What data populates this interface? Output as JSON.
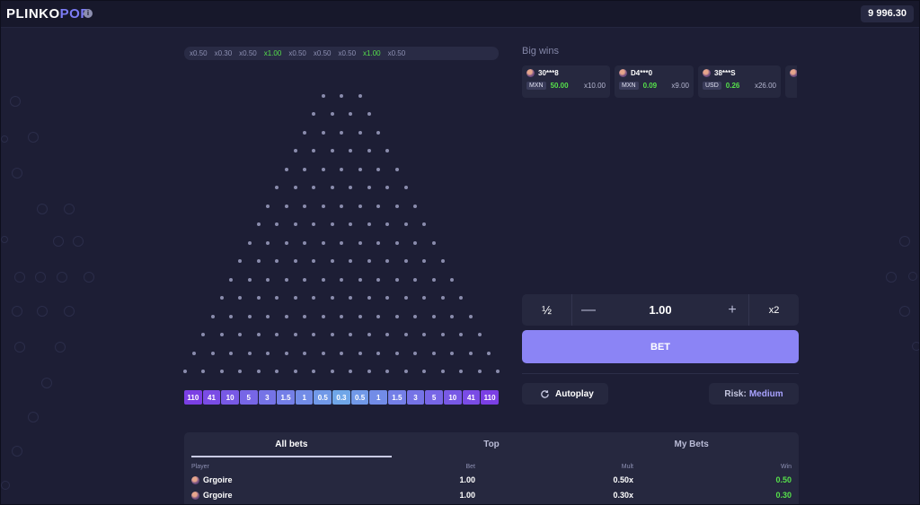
{
  "header": {
    "logo_part1": "PLINKO",
    "logo_part2": "POP",
    "info_icon": "info-icon",
    "balance": "9 996.30"
  },
  "history": [
    "x0.50",
    "x0.30",
    "x0.50",
    "x1.00",
    "x0.50",
    "x0.50",
    "x0.50",
    "x1.00",
    "x0.50"
  ],
  "board": {
    "slots": [
      "110",
      "41",
      "10",
      "5",
      "3",
      "1.5",
      "1",
      "0.5",
      "0.3",
      "0.5",
      "1",
      "1.5",
      "3",
      "5",
      "10",
      "41",
      "110"
    ]
  },
  "big_wins": {
    "title": "Big wins",
    "cards": [
      {
        "user": "30***8",
        "currency": "MXN",
        "amount": "50.00",
        "mult": "x10.00"
      },
      {
        "user": "D4***0",
        "currency": "MXN",
        "amount": "0.09",
        "mult": "x9.00"
      },
      {
        "user": "38***S",
        "currency": "USD",
        "amount": "0.26",
        "mult": "x26.00"
      }
    ]
  },
  "bet_panel": {
    "half_label": "½",
    "minus_label": "—",
    "amount": "1.00",
    "plus_label": "+",
    "double_label": "x2",
    "bet_label": "BET",
    "autoplay_label": "Autoplay",
    "autoplay_icon": "refresh-icon",
    "risk_label": "Risk:",
    "risk_value": "Medium"
  },
  "bets_table": {
    "tabs": [
      "All bets",
      "Top",
      "My Bets"
    ],
    "columns": [
      "Player",
      "Bet",
      "Mult",
      "Win"
    ],
    "rows": [
      {
        "player": "Grgoire",
        "bet": "1.00",
        "mult": "0.50x",
        "win": "0.50"
      },
      {
        "player": "Grgoire",
        "bet": "1.00",
        "mult": "0.30x",
        "win": "0.30"
      }
    ]
  },
  "colors": {
    "accent": "#8b84f5",
    "win_green": "#56e04b",
    "slot_edge": "#7b3fe4",
    "slot_center": "#6fa6e8"
  }
}
